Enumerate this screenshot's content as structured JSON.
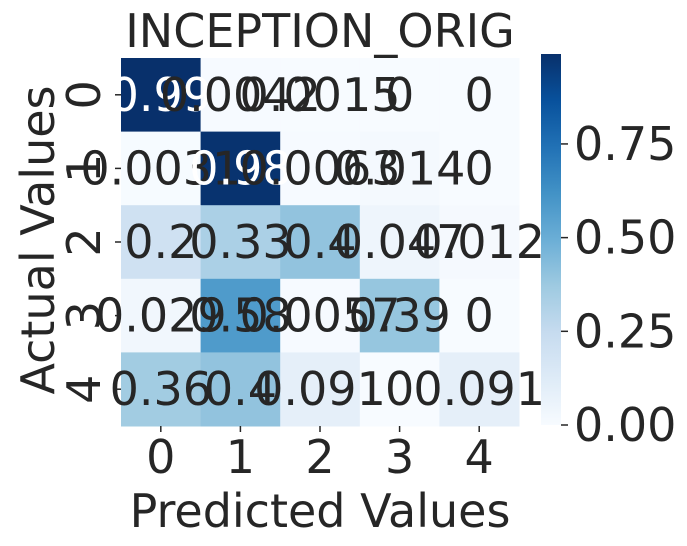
{
  "chart_data": {
    "type": "heatmap",
    "title": "INCEPTION_ORIG",
    "xlabel": "Predicted Values",
    "ylabel": "Actual Values",
    "x_categories": [
      "0",
      "1",
      "2",
      "3",
      "4"
    ],
    "y_categories": [
      "0",
      "1",
      "2",
      "3",
      "4"
    ],
    "values": [
      [
        0.99,
        0.0042,
        0.0015,
        0,
        0
      ],
      [
        0.0031,
        0.98,
        0.0063,
        0.014,
        0
      ],
      [
        0.2,
        0.33,
        0.4,
        0.047,
        0.012
      ],
      [
        0.029,
        0.58,
        0.0057,
        0.39,
        0
      ],
      [
        0.36,
        0.4,
        0.091,
        0,
        0.091
      ]
    ],
    "cell_labels": [
      [
        "0.99",
        "0.0042",
        "0.0015",
        "0",
        "0"
      ],
      [
        "0.0031",
        "0.98",
        "0.0063",
        "0.014",
        "0"
      ],
      [
        "0.2",
        "0.33",
        "0.4",
        "0.047",
        "0.012"
      ],
      [
        "0.029",
        "0.58",
        "0.0057",
        "0.39",
        "0"
      ],
      [
        "0.36",
        "0.4",
        "0.091",
        "0",
        "0.091"
      ]
    ],
    "colormap": "Blues",
    "vmin": 0,
    "vmax": 0.99,
    "colorbar_ticks": [
      0,
      0.25,
      0.5,
      0.75
    ],
    "colorbar_tick_labels": [
      "0.00",
      "0.25",
      "0.50",
      "0.75"
    ],
    "grid": false,
    "legend": "colorbar-right"
  }
}
